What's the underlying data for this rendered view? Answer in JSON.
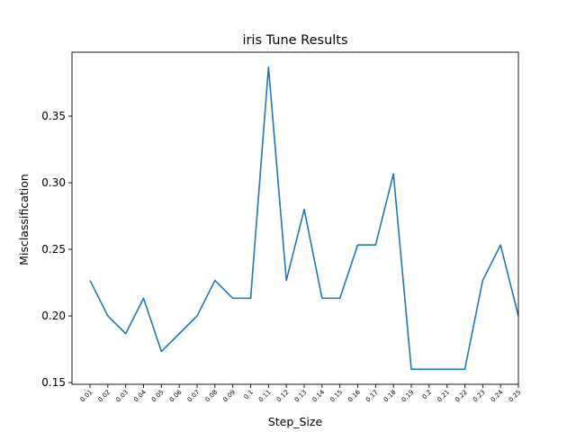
{
  "chart_data": {
    "type": "line",
    "title": "iris Tune Results",
    "xlabel": "Step_Size",
    "ylabel": "Misclassification",
    "categories": [
      "0.01",
      "0.02",
      "0.03",
      "0.04",
      "0.05",
      "0.06",
      "0.07",
      "0.08",
      "0.09",
      "0.1",
      "0.11",
      "0.12",
      "0.13",
      "0.14",
      "0.15",
      "0.16",
      "0.17",
      "0.18",
      "0.19",
      "0.2",
      "0.21",
      "0.22",
      "0.23",
      "0.24",
      "0.25"
    ],
    "series": [
      {
        "values": [
          0.2267,
          0.2,
          0.1867,
          0.2133,
          0.1733,
          0.1867,
          0.2,
          0.2267,
          0.2133,
          0.2133,
          0.3867,
          0.2267,
          0.28,
          0.2133,
          0.2133,
          0.2533,
          0.2533,
          0.3067,
          0.16,
          0.16,
          0.16,
          0.16,
          0.2267,
          0.2533,
          0.2
        ],
        "color": "#1f77b4"
      }
    ],
    "yticks": [
      0.15,
      0.2,
      0.25,
      0.3,
      0.35
    ],
    "ytick_labels": [
      "0.15",
      "0.20",
      "0.25",
      "0.30",
      "0.35"
    ],
    "ylim": [
      0.1487,
      0.398
    ],
    "grid": false,
    "legend": "none"
  }
}
